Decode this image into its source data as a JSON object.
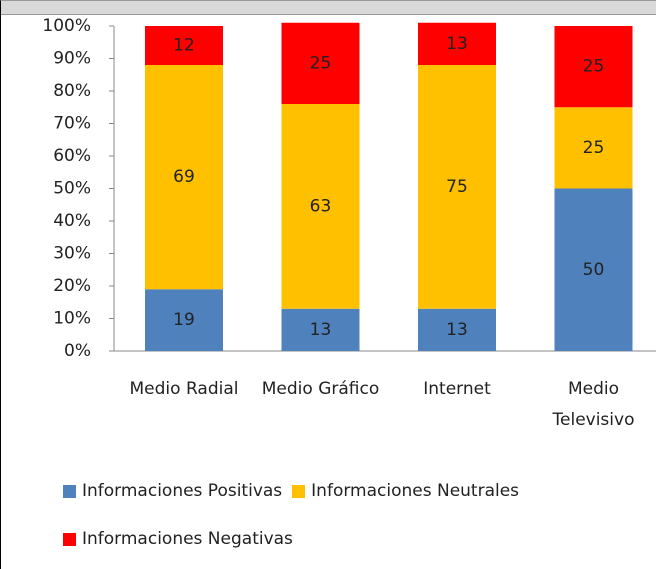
{
  "chart_data": {
    "type": "stacked_bar",
    "categories": [
      "Medio Radial",
      "Medio Gráfico",
      "Internet",
      "Medio Televisivo"
    ],
    "series": [
      {
        "name": "Informaciones Positivas",
        "color": "#4f81bd",
        "values": [
          19,
          13,
          13,
          50
        ]
      },
      {
        "name": "Informaciones Neutrales",
        "color": "#ffc000",
        "values": [
          69,
          63,
          75,
          25
        ]
      },
      {
        "name": "Informaciones Negativas",
        "color": "#ff0000",
        "values": [
          12,
          25,
          13,
          25
        ]
      }
    ],
    "ylim": [
      0,
      100
    ],
    "yticks": [
      {
        "value": 0,
        "label": "0%"
      },
      {
        "value": 10,
        "label": "10%"
      },
      {
        "value": 20,
        "label": "20%"
      },
      {
        "value": 30,
        "label": "30%"
      },
      {
        "value": 40,
        "label": "40%"
      },
      {
        "value": 50,
        "label": "50%"
      },
      {
        "value": 60,
        "label": "60%"
      },
      {
        "value": 70,
        "label": "70%"
      },
      {
        "value": 80,
        "label": "80%"
      },
      {
        "value": 90,
        "label": "90%"
      },
      {
        "value": 100,
        "label": "100%"
      }
    ],
    "grid": false,
    "legend": "bottom"
  }
}
